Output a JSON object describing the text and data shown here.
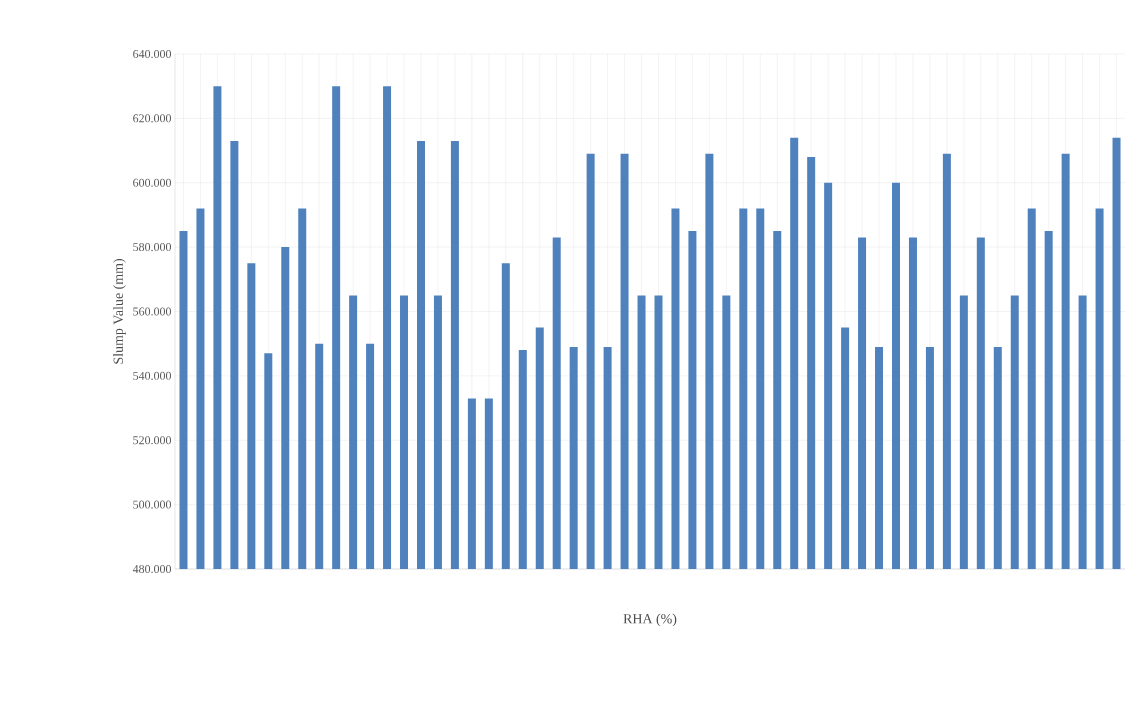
{
  "chart_data": {
    "type": "bar",
    "xlabel": "RHA (%)",
    "ylabel": "Slump Value (mm)",
    "categories": [
      null,
      null,
      null,
      null,
      null,
      null,
      null,
      null,
      null,
      null,
      null,
      null,
      null,
      null,
      null,
      null,
      null,
      null,
      null,
      null,
      null,
      null,
      null,
      null,
      null,
      null,
      null,
      null,
      null,
      null,
      null,
      null,
      null,
      null,
      null,
      null,
      null,
      null,
      null,
      null,
      null,
      null,
      null,
      null,
      null,
      null,
      null,
      null,
      null,
      null,
      null,
      null,
      null,
      null,
      null,
      null
    ],
    "values": [
      585,
      592,
      630,
      613,
      575,
      547,
      580,
      592,
      550,
      630,
      565,
      550,
      630,
      565,
      613,
      565,
      613,
      533,
      533,
      575,
      548,
      555,
      583,
      549,
      609,
      549,
      609,
      565,
      565,
      592,
      585,
      609,
      565,
      592,
      592,
      585,
      614,
      608,
      600,
      555,
      583,
      549,
      600,
      583,
      549,
      609,
      565,
      583,
      549,
      565,
      592,
      585,
      609,
      565,
      592,
      614
    ],
    "color": "#4f81bd",
    "ylim": [
      480,
      640
    ],
    "yticks": [
      {
        "value": 480,
        "label": "480.000"
      },
      {
        "value": 500,
        "label": "500.000"
      },
      {
        "value": 520,
        "label": "520.000"
      },
      {
        "value": 540,
        "label": "540.000"
      },
      {
        "value": 560,
        "label": "560.000"
      },
      {
        "value": 580,
        "label": "580.000"
      },
      {
        "value": 600,
        "label": "600.000"
      },
      {
        "value": 620,
        "label": "620.000"
      },
      {
        "value": 640,
        "label": "640.000"
      }
    ],
    "grid": true
  }
}
